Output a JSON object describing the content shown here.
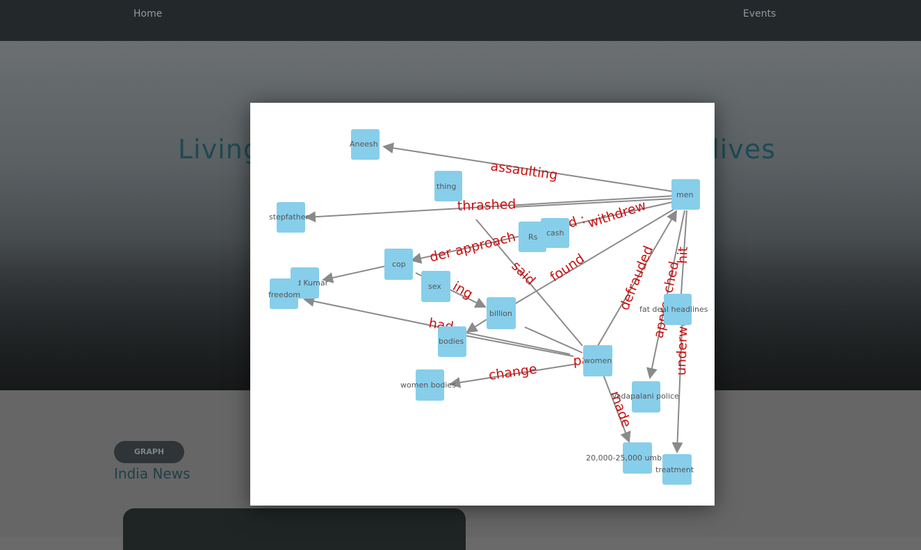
{
  "nav": {
    "home": "Home",
    "events": "Events"
  },
  "hero": {
    "title_left": "Living",
    "title_right": "lives"
  },
  "section": {
    "badge": "GRAPH",
    "title": "India News"
  },
  "graph": {
    "colors": {
      "node": "#87ceeb",
      "edge": "#8a8a8a",
      "edge_label": "#cc1010"
    },
    "nodes": {
      "aneesh": "Aneesh",
      "thing": "thing",
      "stepfather": "stepfather",
      "rs": "Rs",
      "cash": "cash",
      "men": "men",
      "cop": "cop",
      "vinod": "Vinod Kumar",
      "freedom": "freedom",
      "sex": "sex",
      "billion": "billion",
      "fat": "fat deal headlines",
      "bodies": "bodies",
      "women": "women",
      "women_bodies": "women bodies",
      "police": "Vadapalani police",
      "umbrellas": "20,000-25,000 umbrellas",
      "treatment": "treatment"
    },
    "edges": {
      "assaulting": "assaulting",
      "thrashed": "thrashed",
      "withdrew": "withdrew",
      "approach_cop": "der approach",
      "said": "said",
      "found": "found",
      "defrauded": "defrauded",
      "approached": "approached",
      "hit": "hit",
      "underwent": "underwent",
      "ing": "ing",
      "had": "had",
      "change": "change",
      "paid": "paid",
      "made": "made"
    }
  }
}
